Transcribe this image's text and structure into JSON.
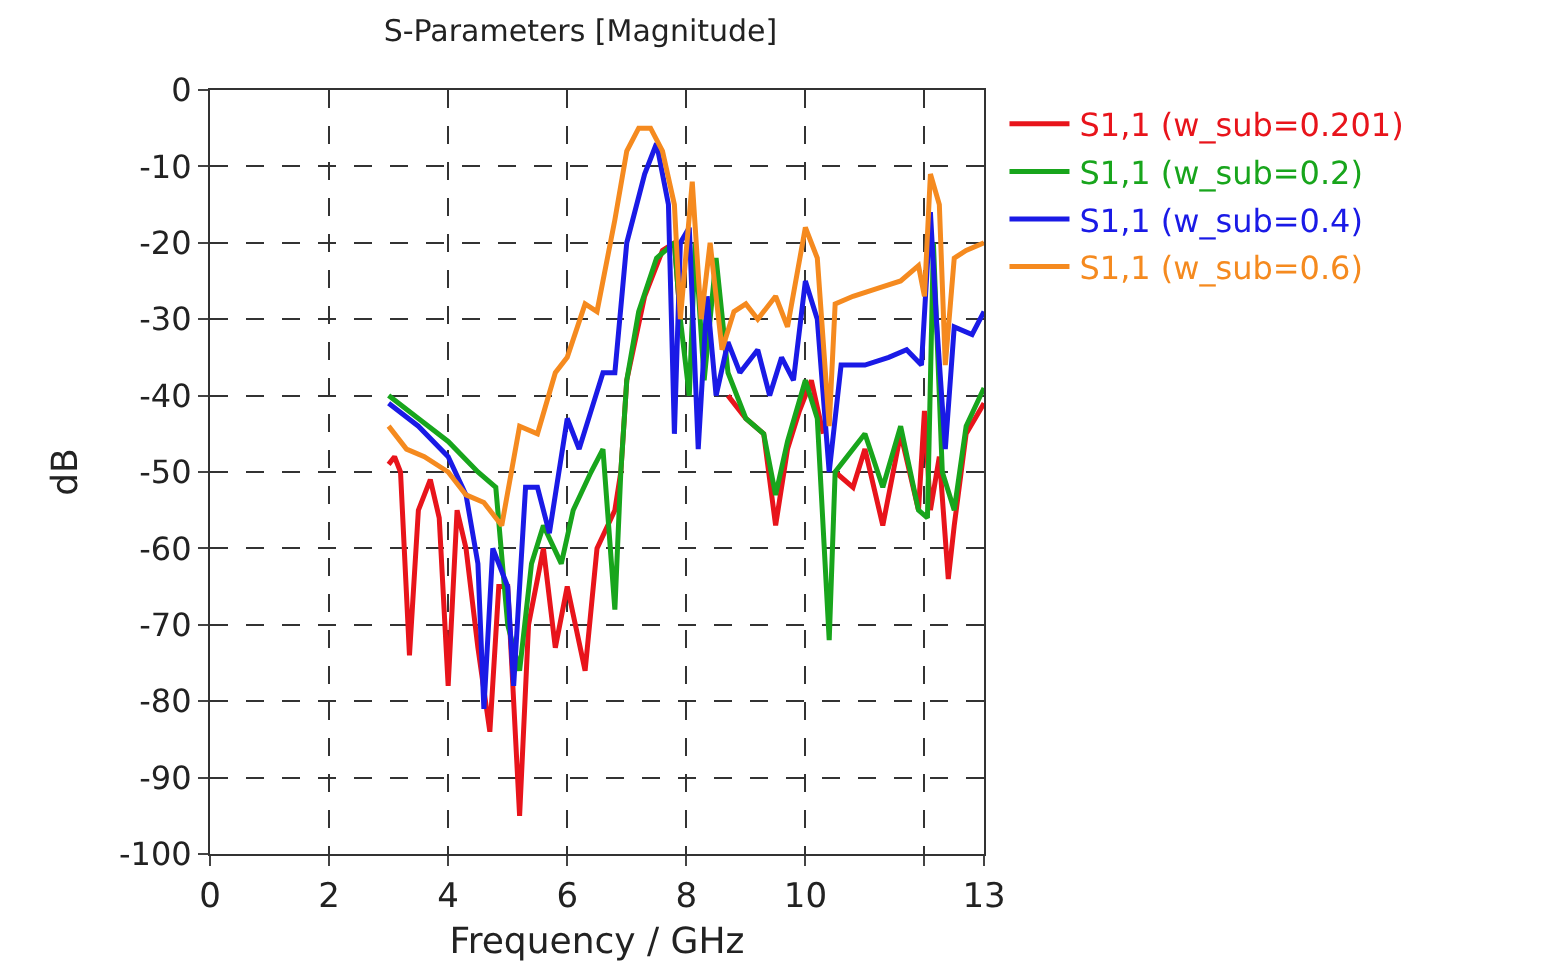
{
  "chart_data": {
    "type": "line",
    "title": "S-Parameters [Magnitude]",
    "xlabel": "Frequency / GHz",
    "ylabel": "dB",
    "xlim": [
      0,
      13
    ],
    "ylim": [
      -100,
      0
    ],
    "xticks": [
      0,
      2,
      4,
      6,
      8,
      10,
      {
        "value": 12,
        "label": null
      },
      13
    ],
    "yticks": [
      0,
      -10,
      -20,
      -30,
      -40,
      -50,
      -60,
      -70,
      -80,
      -90,
      -100
    ],
    "grid": true,
    "legend": "top right",
    "marker": "none",
    "line_style": "solid",
    "series": [
      {
        "name": "S1,1 (w_sub=0.201)",
        "color": "#e8141b",
        "x": [
          3.0,
          3.1,
          3.2,
          3.35,
          3.5,
          3.7,
          3.85,
          4.0,
          4.15,
          4.3,
          4.5,
          4.7,
          4.85,
          5.0,
          5.2,
          5.35,
          5.6,
          5.8,
          6.0,
          6.3,
          6.5,
          6.8,
          6.9,
          7.0,
          7.3,
          7.6,
          7.8,
          7.9,
          8.05,
          8.15,
          8.3,
          8.5,
          8.7,
          9.0,
          9.3,
          9.5,
          9.7,
          9.9,
          10.1,
          10.3,
          10.4,
          10.5,
          10.8,
          11.0,
          11.3,
          11.6,
          11.9,
          12.0,
          12.1,
          12.25,
          12.4,
          12.5,
          12.7,
          13.0
        ],
        "values": [
          -49,
          -48,
          -50,
          -74,
          -55,
          -51,
          -56,
          -78,
          -55,
          -60,
          -73,
          -84,
          -65,
          -65,
          -95,
          -70,
          -60,
          -73,
          -65,
          -76,
          -60,
          -55,
          -50,
          -38,
          -27,
          -21,
          -20,
          -30,
          null,
          null,
          null,
          null,
          -40,
          -43,
          -45,
          -57,
          -47,
          -42,
          -38,
          -45,
          null,
          -50,
          -52,
          -47,
          -57,
          -45,
          -55,
          -42,
          -55,
          -48,
          -64,
          -57,
          -45,
          -41
        ]
      },
      {
        "name": "S1,1 (w_sub=0.2)",
        "color": "#18a51c",
        "x": [
          3.0,
          3.5,
          4.0,
          4.5,
          4.8,
          5.0,
          5.2,
          5.4,
          5.6,
          5.9,
          6.1,
          6.4,
          6.6,
          6.8,
          6.9,
          7.0,
          7.2,
          7.5,
          7.8,
          7.9,
          8.05,
          8.15,
          8.3,
          8.5,
          8.7,
          9.0,
          9.3,
          9.5,
          9.7,
          10.0,
          10.2,
          10.4,
          10.5,
          11.0,
          11.3,
          11.6,
          11.9,
          12.05,
          12.15,
          12.3,
          12.5,
          12.7,
          13.0
        ],
        "values": [
          -40,
          -43,
          -46,
          -50,
          -52,
          -70,
          -76,
          -62,
          -57,
          -62,
          -55,
          -50,
          -47,
          -68,
          -50,
          -38,
          -29,
          -22,
          -20,
          -30,
          -40,
          -20,
          -38,
          -22,
          -37,
          -43,
          -45,
          -53,
          -46,
          -38,
          -43,
          -72,
          -50,
          -45,
          -52,
          -44,
          -55,
          -56,
          -20,
          -50,
          -55,
          -44,
          -39
        ]
      },
      {
        "name": "S1,1 (w_sub=0.4)",
        "color": "#1a1ae6",
        "x": [
          3.0,
          3.5,
          4.0,
          4.3,
          4.5,
          4.6,
          4.75,
          5.0,
          5.1,
          5.3,
          5.5,
          5.7,
          6.0,
          6.2,
          6.4,
          6.6,
          6.8,
          7.0,
          7.3,
          7.5,
          7.7,
          7.8,
          7.9,
          8.05,
          8.2,
          8.35,
          8.5,
          8.7,
          8.9,
          9.2,
          9.4,
          9.6,
          9.8,
          10.0,
          10.2,
          10.4,
          10.6,
          11.0,
          11.4,
          11.7,
          11.95,
          12.1,
          12.2,
          12.35,
          12.5,
          12.8,
          13.0
        ],
        "values": [
          -41,
          -44,
          -48,
          -53,
          -62,
          -81,
          -60,
          -65,
          -78,
          -52,
          -52,
          -58,
          -43,
          -47,
          -42,
          -37,
          -37,
          -20,
          -11,
          -7,
          -15,
          -45,
          -20,
          -18,
          -47,
          -27,
          -40,
          -33,
          -37,
          -34,
          -40,
          -35,
          -38,
          -25,
          -30,
          -50,
          -36,
          -36,
          -35,
          -34,
          -36,
          -16,
          -30,
          -47,
          -31,
          -32,
          -29
        ]
      },
      {
        "name": "S1,1 (w_sub=0.6)",
        "color": "#f58a1f",
        "x": [
          3.0,
          3.3,
          3.6,
          4.0,
          4.3,
          4.6,
          4.9,
          5.2,
          5.5,
          5.8,
          6.0,
          6.3,
          6.5,
          6.8,
          7.0,
          7.2,
          7.4,
          7.6,
          7.8,
          7.9,
          8.1,
          8.25,
          8.4,
          8.6,
          8.8,
          9.0,
          9.2,
          9.5,
          9.7,
          10.0,
          10.2,
          10.4,
          10.5,
          10.8,
          11.2,
          11.6,
          11.9,
          12.0,
          12.1,
          12.25,
          12.35,
          12.5,
          12.7,
          13.0
        ],
        "values": [
          -44,
          -47,
          -48,
          -50,
          -53,
          -54,
          -57,
          -44,
          -45,
          -37,
          -35,
          -28,
          -29,
          -17,
          -8,
          -5,
          -5,
          -8,
          -15,
          -30,
          -12,
          -30,
          -20,
          -34,
          -29,
          -28,
          -30,
          -27,
          -31,
          -18,
          -22,
          -44,
          -28,
          -27,
          -26,
          -25,
          -23,
          -27,
          -11,
          -15,
          -36,
          -22,
          -21,
          -20
        ]
      }
    ]
  }
}
